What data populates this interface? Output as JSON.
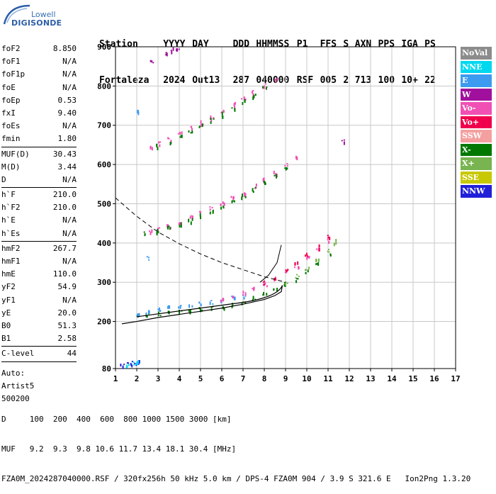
{
  "logo": {
    "line1": "Lowell",
    "line2": "DIGISONDE"
  },
  "header": {
    "row1": [
      "Station",
      "YYYY",
      "DAY",
      "DDD",
      "HHMMSS",
      "P1",
      "FFS",
      "S",
      "AXN",
      "PPS",
      "IGA",
      "PS"
    ],
    "row2": [
      "Fortaleza",
      "2024",
      "Out13",
      "287",
      "040000",
      "RSF",
      "005",
      "2",
      "713",
      "100",
      "10+",
      "22"
    ]
  },
  "params": {
    "group1": [
      {
        "label": "foF2",
        "value": "8.850"
      },
      {
        "label": "foF1",
        "value": "N/A"
      },
      {
        "label": "foF1p",
        "value": "N/A"
      },
      {
        "label": "foE",
        "value": "N/A"
      },
      {
        "label": "foEp",
        "value": "0.53"
      },
      {
        "label": "fxI",
        "value": "9.40"
      },
      {
        "label": "foEs",
        "value": "N/A"
      },
      {
        "label": "fmin",
        "value": "1.80"
      }
    ],
    "group2": [
      {
        "label": "MUF(D)",
        "value": "30.43"
      },
      {
        "label": "M(D)",
        "value": "3.44"
      },
      {
        "label": "D",
        "value": "N/A"
      }
    ],
    "group3": [
      {
        "label": "h`F",
        "value": "210.0"
      },
      {
        "label": "h`F2",
        "value": "210.0"
      },
      {
        "label": "h`E",
        "value": "N/A"
      },
      {
        "label": "h`Es",
        "value": "N/A"
      }
    ],
    "group4": [
      {
        "label": "hmF2",
        "value": "267.7"
      },
      {
        "label": "hmF1",
        "value": "N/A"
      },
      {
        "label": "hmE",
        "value": "110.0"
      },
      {
        "label": "yF2",
        "value": "54.9"
      },
      {
        "label": "yF1",
        "value": "N/A"
      },
      {
        "label": "yE",
        "value": "20.0"
      },
      {
        "label": "B0",
        "value": "51.3"
      },
      {
        "label": "B1",
        "value": "2.58"
      }
    ],
    "group5": [
      {
        "label": "C-level",
        "value": "44"
      }
    ],
    "auto": [
      "Auto:",
      "Artist5",
      "500200"
    ]
  },
  "legend": [
    {
      "label": "NoVal",
      "color": "#8c8c8c"
    },
    {
      "label": "NNE",
      "color": "#00d8f0"
    },
    {
      "label": "E",
      "color": "#3c9bf0"
    },
    {
      "label": "W",
      "color": "#a0109c"
    },
    {
      "label": "Vo-",
      "color": "#f050b4"
    },
    {
      "label": "Vo+",
      "color": "#f0004c"
    },
    {
      "label": "SSW",
      "color": "#f4a0a0"
    },
    {
      "label": "X-",
      "color": "#007800"
    },
    {
      "label": "X+",
      "color": "#78b450"
    },
    {
      "label": "SSE",
      "color": "#c8c800"
    },
    {
      "label": "NNW",
      "color": "#2020d8"
    }
  ],
  "footer": {
    "line1": "D     100  200  400  600  800 1000 1500 3000 [km]",
    "line2": "MUF   9.2  9.3  9.8 10.6 11.7 13.4 18.1 30.4 [MHz]",
    "line3": "FZA0M_2024287040000.RSF / 320fx256h 50 kHz 5.0 km / DPS-4 FZA0M 904 / 3.9 S 321.6 E   Ion2Png 1.3.20"
  },
  "chart_data": {
    "type": "scatter",
    "xlim": [
      1,
      17
    ],
    "ylim": [
      80,
      900
    ],
    "x_ticks": [
      1,
      2,
      3,
      4,
      5,
      6,
      7,
      8,
      9,
      10,
      11,
      12,
      13,
      14,
      15,
      16,
      17
    ],
    "y_ticks": [
      80,
      200,
      300,
      400,
      500,
      600,
      700,
      800,
      900
    ],
    "grid": true,
    "traces": [
      {
        "mode": "X-",
        "color": "#007800",
        "points": [
          [
            2.0,
            216
          ],
          [
            2.5,
            218
          ],
          [
            3.0,
            222
          ],
          [
            3.5,
            224
          ],
          [
            4.0,
            226
          ],
          [
            4.5,
            228
          ],
          [
            5.0,
            232
          ],
          [
            5.5,
            236
          ],
          [
            6.0,
            240
          ],
          [
            6.5,
            246
          ],
          [
            7.0,
            252
          ],
          [
            7.5,
            260
          ],
          [
            8.0,
            270
          ],
          [
            8.5,
            282
          ],
          [
            9.0,
            295
          ],
          [
            9.5,
            310
          ],
          [
            10.0,
            330
          ],
          [
            10.5,
            350
          ],
          [
            11.0,
            375
          ]
        ]
      },
      {
        "mode": "E",
        "color": "#3c9bf0",
        "points": [
          [
            2.0,
            222
          ],
          [
            2.5,
            228
          ],
          [
            3.0,
            232
          ],
          [
            3.5,
            236
          ],
          [
            4.0,
            240
          ],
          [
            4.5,
            242
          ],
          [
            5.0,
            246
          ],
          [
            5.5,
            250
          ],
          [
            6.0,
            254
          ],
          [
            6.5,
            262
          ],
          [
            7.0,
            268
          ]
        ]
      },
      {
        "mode": "Vo-",
        "color": "#f050b4",
        "points": [
          [
            6.0,
            258
          ],
          [
            6.5,
            266
          ],
          [
            7.0,
            274
          ],
          [
            7.5,
            284
          ],
          [
            8.0,
            296
          ],
          [
            8.5,
            310
          ],
          [
            9.0,
            326
          ],
          [
            9.5,
            344
          ],
          [
            10.0,
            362
          ],
          [
            10.5,
            384
          ],
          [
            11.0,
            410
          ]
        ]
      },
      {
        "mode": "Vo+",
        "color": "#f0004c",
        "points": [
          [
            8.0,
            300
          ],
          [
            8.5,
            314
          ],
          [
            9.0,
            330
          ],
          [
            9.5,
            350
          ],
          [
            10.0,
            370
          ],
          [
            10.5,
            392
          ],
          [
            11.0,
            420
          ]
        ]
      },
      {
        "mode": "X+",
        "color": "#78b450",
        "points": [
          [
            9.0,
            300
          ],
          [
            9.5,
            318
          ],
          [
            10.0,
            335
          ],
          [
            10.5,
            355
          ],
          [
            11.0,
            380
          ],
          [
            11.3,
            405
          ]
        ]
      },
      {
        "mode": "Vo-",
        "color": "#f050b4",
        "points": [
          [
            2.6,
            432
          ],
          [
            3.0,
            438
          ],
          [
            3.5,
            446
          ],
          [
            4.0,
            456
          ],
          [
            4.5,
            466
          ],
          [
            5.0,
            478
          ],
          [
            5.5,
            490
          ],
          [
            6.0,
            502
          ],
          [
            6.5,
            516
          ],
          [
            7.0,
            530
          ],
          [
            7.5,
            546
          ],
          [
            8.0,
            562
          ],
          [
            8.5,
            580
          ],
          [
            9.0,
            600
          ],
          [
            9.5,
            620
          ]
        ]
      },
      {
        "mode": "X-",
        "color": "#007800",
        "points": [
          [
            2.4,
            426
          ],
          [
            3.0,
            432
          ],
          [
            3.5,
            440
          ],
          [
            4.0,
            450
          ],
          [
            4.5,
            460
          ],
          [
            5.0,
            472
          ],
          [
            5.5,
            484
          ],
          [
            6.0,
            496
          ],
          [
            6.5,
            508
          ],
          [
            7.0,
            522
          ],
          [
            7.5,
            538
          ],
          [
            8.0,
            554
          ],
          [
            8.5,
            572
          ],
          [
            9.0,
            590
          ]
        ]
      },
      {
        "mode": "Vo-",
        "color": "#f050b4",
        "points": [
          [
            2.7,
            650
          ],
          [
            3.0,
            656
          ],
          [
            3.5,
            668
          ],
          [
            4.0,
            680
          ],
          [
            4.5,
            694
          ],
          [
            5.0,
            708
          ],
          [
            5.5,
            722
          ],
          [
            6.0,
            738
          ],
          [
            6.5,
            754
          ],
          [
            7.0,
            770
          ],
          [
            7.5,
            786
          ],
          [
            8.0,
            804
          ],
          [
            8.5,
            822
          ]
        ]
      },
      {
        "mode": "X-",
        "color": "#007800",
        "points": [
          [
            3.0,
            648
          ],
          [
            3.5,
            660
          ],
          [
            4.0,
            672
          ],
          [
            4.5,
            686
          ],
          [
            5.0,
            700
          ],
          [
            5.5,
            714
          ],
          [
            6.0,
            730
          ],
          [
            6.5,
            746
          ],
          [
            7.0,
            762
          ],
          [
            7.5,
            778
          ],
          [
            8.0,
            796
          ]
        ]
      },
      {
        "mode": "NNW",
        "color": "#2020d8",
        "points": [
          [
            1.3,
            90
          ],
          [
            1.6,
            92
          ],
          [
            1.8,
            95
          ],
          [
            2.0,
            99
          ]
        ]
      },
      {
        "mode": "NNE",
        "color": "#00d8f0",
        "points": [
          [
            1.5,
            90
          ],
          [
            1.9,
            94
          ],
          [
            2.0,
            96
          ]
        ]
      },
      {
        "mode": "W",
        "color": "#a0109c",
        "points": [
          [
            2.7,
            866
          ],
          [
            3.3,
            886
          ],
          [
            3.6,
            894
          ],
          [
            3.9,
            898
          ],
          [
            11.7,
            660
          ]
        ]
      },
      {
        "mode": "E",
        "color": "#3c9bf0",
        "points": [
          [
            2.0,
            740
          ],
          [
            2.5,
            362
          ]
        ]
      }
    ],
    "profile": [
      [
        1.3,
        194
      ],
      [
        2.0,
        200
      ],
      [
        3.0,
        210
      ],
      [
        4.0,
        218
      ],
      [
        5.0,
        226
      ],
      [
        6.0,
        234
      ],
      [
        7.0,
        244
      ],
      [
        8.0,
        256
      ],
      [
        8.5,
        266
      ],
      [
        8.8,
        276
      ],
      [
        8.85,
        292
      ]
    ],
    "muf_curve": [
      [
        1.0,
        515
      ],
      [
        2.0,
        468
      ],
      [
        3.0,
        428
      ],
      [
        4.0,
        398
      ],
      [
        5.0,
        372
      ],
      [
        6.0,
        350
      ],
      [
        7.0,
        332
      ],
      [
        8.0,
        314
      ],
      [
        9.0,
        300
      ]
    ],
    "trace_line": [
      [
        7.8,
        300
      ],
      [
        8.2,
        318
      ],
      [
        8.6,
        350
      ],
      [
        8.8,
        395
      ]
    ]
  }
}
